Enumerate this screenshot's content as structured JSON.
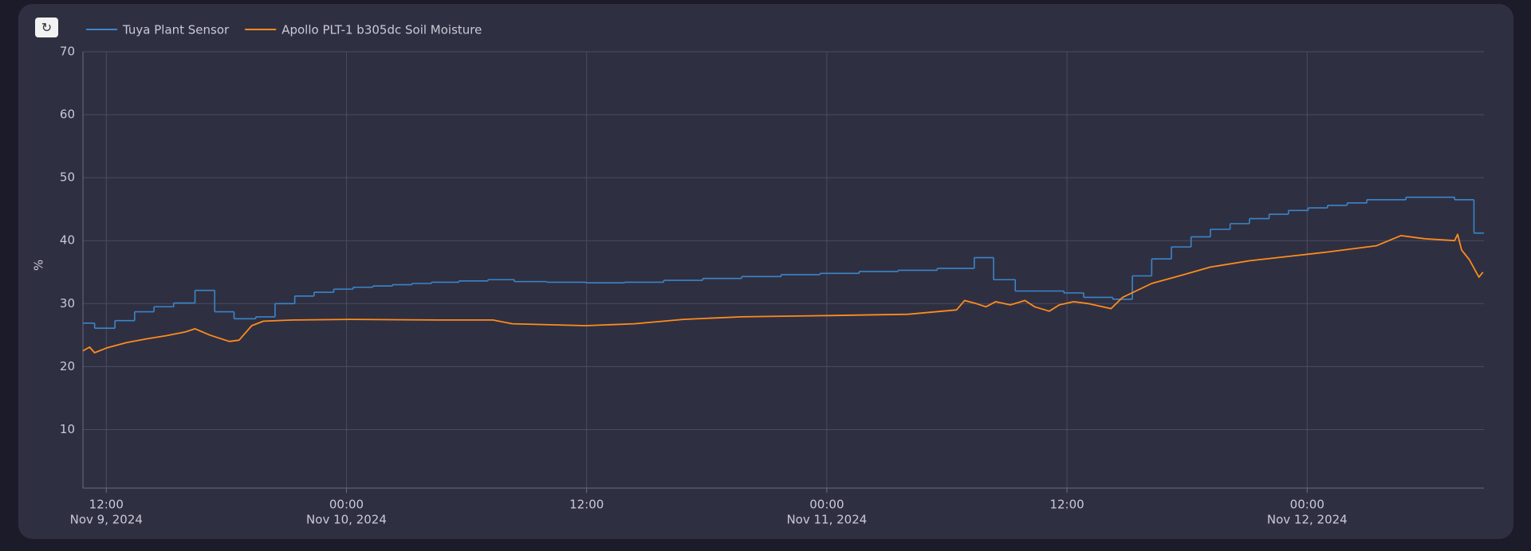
{
  "chart_data": {
    "type": "line",
    "y_label": "%",
    "xlim": [
      "2024-11-09T10:50",
      "2024-11-12T08:50"
    ],
    "xticks": [
      {
        "value": "2024-11-09T12:00",
        "label": [
          "12:00",
          "Nov 9, 2024"
        ]
      },
      {
        "value": "2024-11-10T00:00",
        "label": [
          "00:00",
          "Nov 10, 2024"
        ]
      },
      {
        "value": "2024-11-10T12:00",
        "label": [
          "12:00"
        ]
      },
      {
        "value": "2024-11-11T00:00",
        "label": [
          "00:00",
          "Nov 11, 2024"
        ]
      },
      {
        "value": "2024-11-11T12:00",
        "label": [
          "12:00"
        ]
      },
      {
        "value": "2024-11-12T00:00",
        "label": [
          "00:00",
          "Nov 12, 2024"
        ]
      }
    ],
    "ylim": [
      0.7,
      70
    ],
    "yticks": [
      10,
      20,
      30,
      40,
      50,
      60,
      70
    ],
    "grid": true,
    "series": [
      {
        "name": "Tuya Plant Sensor",
        "color": "#3a86c8",
        "line_shape": "hv",
        "x": [
          "2024-11-09T10:50",
          "2024-11-09T11:25",
          "2024-11-09T12:26",
          "2024-11-09T13:25",
          "2024-11-09T14:23",
          "2024-11-09T15:22",
          "2024-11-09T16:26",
          "2024-11-09T17:25",
          "2024-11-09T18:23",
          "2024-11-09T19:28",
          "2024-11-09T20:26",
          "2024-11-09T21:25",
          "2024-11-09T22:23",
          "2024-11-09T23:22",
          "2024-11-10T00:20",
          "2024-11-10T01:19",
          "2024-11-10T02:18",
          "2024-11-10T03:16",
          "2024-11-10T04:15",
          "2024-11-10T05:37",
          "2024-11-10T07:04",
          "2024-11-10T08:23",
          "2024-11-10T10:00",
          "2024-11-10T11:57",
          "2024-11-10T13:54",
          "2024-11-10T15:51",
          "2024-11-10T17:48",
          "2024-11-10T19:45",
          "2024-11-10T21:43",
          "2024-11-10T23:40",
          "2024-11-11T01:37",
          "2024-11-11T03:34",
          "2024-11-11T05:31",
          "2024-11-11T07:22",
          "2024-11-11T08:20",
          "2024-11-11T09:25",
          "2024-11-11T11:51",
          "2024-11-11T12:50",
          "2024-11-11T14:17",
          "2024-11-11T15:16",
          "2024-11-11T16:14",
          "2024-11-11T17:13",
          "2024-11-11T18:12",
          "2024-11-11T19:10",
          "2024-11-11T20:09",
          "2024-11-11T21:07",
          "2024-11-11T22:06",
          "2024-11-11T23:04",
          "2024-11-12T00:03",
          "2024-11-12T01:01",
          "2024-11-12T02:00",
          "2024-11-12T02:59",
          "2024-11-12T04:56",
          "2024-11-12T07:22",
          "2024-11-12T08:20"
        ],
        "values": [
          26.9,
          26.1,
          27.3,
          28.7,
          29.5,
          30.1,
          32.1,
          28.7,
          27.6,
          27.9,
          30.0,
          31.2,
          31.8,
          32.3,
          32.6,
          32.8,
          33.0,
          33.2,
          33.4,
          33.6,
          33.8,
          33.5,
          33.4,
          33.3,
          33.4,
          33.7,
          34.0,
          34.3,
          34.6,
          34.8,
          35.1,
          35.3,
          35.6,
          37.3,
          33.8,
          32.0,
          31.7,
          31.0,
          30.7,
          34.4,
          37.1,
          39.0,
          40.6,
          41.8,
          42.7,
          43.5,
          44.2,
          44.8,
          45.2,
          45.6,
          46.0,
          46.5,
          46.9,
          46.5,
          41.2
        ]
      },
      {
        "name": "Apollo PLT-1 b305dc Soil Moisture",
        "color": "#ff8c1a",
        "line_shape": "linear",
        "x": [
          "2024-11-09T10:50",
          "2024-11-09T11:10",
          "2024-11-09T11:25",
          "2024-11-09T12:03",
          "2024-11-09T13:01",
          "2024-11-09T14:00",
          "2024-11-09T14:59",
          "2024-11-09T15:57",
          "2024-11-09T16:26",
          "2024-11-09T17:10",
          "2024-11-09T18:09",
          "2024-11-09T18:38",
          "2024-11-09T19:16",
          "2024-11-09T19:51",
          "2024-11-09T21:19",
          "2024-11-10T00:14",
          "2024-11-10T04:38",
          "2024-11-10T07:19",
          "2024-11-10T08:17",
          "2024-11-10T11:57",
          "2024-11-10T14:23",
          "2024-11-10T16:50",
          "2024-11-10T19:45",
          "2024-11-11T00:09",
          "2024-11-11T04:03",
          "2024-11-11T06:29",
          "2024-11-11T06:53",
          "2024-11-11T07:28",
          "2024-11-11T07:57",
          "2024-11-11T08:26",
          "2024-11-11T09:10",
          "2024-11-11T09:54",
          "2024-11-11T10:23",
          "2024-11-11T11:07",
          "2024-11-11T11:37",
          "2024-11-11T12:20",
          "2024-11-11T13:04",
          "2024-11-11T14:12",
          "2024-11-11T14:47",
          "2024-11-11T16:14",
          "2024-11-11T17:43",
          "2024-11-11T19:10",
          "2024-11-11T21:07",
          "2024-11-11T23:04",
          "2024-11-12T01:01",
          "2024-11-12T03:28",
          "2024-11-12T04:41",
          "2024-11-12T05:54",
          "2024-11-12T07:22",
          "2024-11-12T07:31",
          "2024-11-12T07:43",
          "2024-11-12T08:06",
          "2024-11-12T08:35",
          "2024-11-12T08:47"
        ],
        "values": [
          22.5,
          23.1,
          22.2,
          23.0,
          23.8,
          24.4,
          24.9,
          25.5,
          26.0,
          25.0,
          24.0,
          24.2,
          26.5,
          27.2,
          27.4,
          27.5,
          27.4,
          27.4,
          26.8,
          26.5,
          26.8,
          27.5,
          27.9,
          28.1,
          28.3,
          29.0,
          30.5,
          30.0,
          29.5,
          30.3,
          29.8,
          30.5,
          29.5,
          28.8,
          29.8,
          30.3,
          30.0,
          29.2,
          31.0,
          33.2,
          34.5,
          35.8,
          36.8,
          37.5,
          38.2,
          39.2,
          40.8,
          40.3,
          40.0,
          41.0,
          38.5,
          37.0,
          34.2,
          35.0
        ]
      }
    ]
  }
}
